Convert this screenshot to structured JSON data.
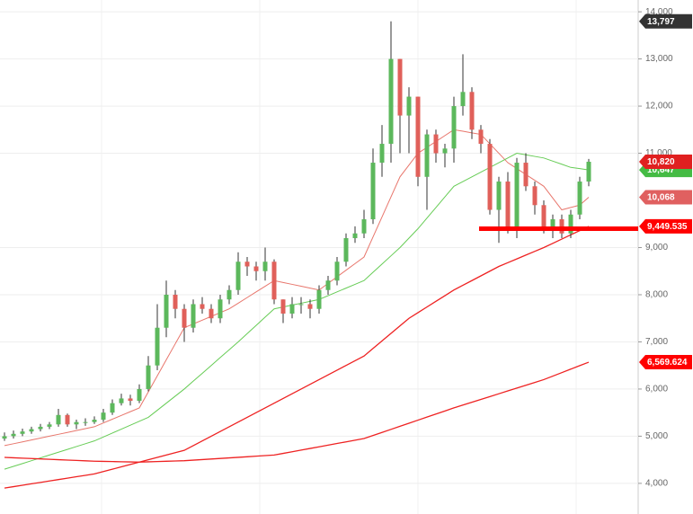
{
  "chart_data": {
    "type": "candlestick",
    "categories": [
      null,
      null,
      null,
      null,
      null,
      null,
      null,
      null,
      null,
      null,
      null,
      null,
      null,
      null,
      null,
      null,
      null,
      null,
      null,
      null,
      null,
      null,
      null,
      null,
      null,
      null,
      null,
      null,
      null,
      null,
      null,
      null,
      null,
      null,
      null,
      null,
      null,
      null,
      null,
      null,
      null,
      null,
      null,
      null,
      null,
      null,
      null,
      null,
      null,
      null,
      null,
      null,
      null,
      null,
      null,
      null,
      null,
      null,
      null,
      null,
      null,
      null,
      null,
      null,
      null,
      null
    ],
    "open": [
      4950,
      5000,
      5050,
      5100,
      5150,
      5200,
      5250,
      5450,
      5250,
      5300,
      5300,
      5350,
      5500,
      5700,
      5800,
      5750,
      6000,
      6500,
      7300,
      8000,
      7700,
      7300,
      7800,
      7700,
      7500,
      7900,
      8100,
      8700,
      8600,
      8500,
      8700,
      7900,
      7600,
      7800,
      7800,
      7700,
      8100,
      8300,
      8700,
      9200,
      9300,
      9600,
      10800,
      11200,
      13000,
      11800,
      12200,
      10500,
      11400,
      11000,
      11100,
      12000,
      12300,
      11500,
      11200,
      9800,
      10400,
      9400,
      10800,
      10300,
      9900,
      9400,
      9600,
      9300,
      9700,
      10400
    ],
    "high": [
      5080,
      5120,
      5160,
      5200,
      5260,
      5300,
      5580,
      5480,
      5350,
      5380,
      5420,
      5580,
      5780,
      5900,
      5880,
      6100,
      6700,
      7800,
      8300,
      8100,
      7800,
      7900,
      7950,
      7800,
      8000,
      8200,
      8900,
      8800,
      8700,
      9000,
      8750,
      7900,
      7950,
      7950,
      7900,
      8200,
      8400,
      8800,
      9300,
      9450,
      9800,
      11100,
      11600,
      13797,
      13000,
      12400,
      12200,
      11500,
      11500,
      11200,
      12200,
      13100,
      12400,
      11600,
      11300,
      10500,
      10600,
      10900,
      11000,
      10400,
      10000,
      9700,
      9700,
      9800,
      10500,
      10880
    ],
    "low": [
      4900,
      4950,
      5000,
      5050,
      5100,
      5150,
      5200,
      5200,
      5150,
      5220,
      5260,
      5300,
      5450,
      5650,
      5650,
      5700,
      5950,
      6400,
      7100,
      7500,
      7000,
      7200,
      7600,
      7400,
      7400,
      7800,
      8000,
      8400,
      8300,
      8300,
      7800,
      7400,
      7500,
      7600,
      7500,
      7600,
      8000,
      8200,
      8600,
      9100,
      9200,
      9500,
      10500,
      10800,
      11000,
      11000,
      10300,
      9800,
      10800,
      10700,
      10800,
      11800,
      11300,
      11000,
      9700,
      9100,
      9300,
      9200,
      10200,
      9700,
      9300,
      9200,
      9200,
      9200,
      9600,
      10300
    ],
    "close": [
      5000,
      5050,
      5100,
      5150,
      5200,
      5250,
      5450,
      5250,
      5300,
      5300,
      5350,
      5500,
      5700,
      5800,
      5750,
      6000,
      6500,
      7300,
      8000,
      7700,
      7300,
      7800,
      7700,
      7500,
      7900,
      8100,
      8700,
      8600,
      8500,
      8700,
      7900,
      7600,
      7800,
      7800,
      7700,
      8100,
      8300,
      8700,
      9200,
      9300,
      9600,
      10800,
      11200,
      13000,
      11800,
      12200,
      10500,
      11400,
      11000,
      11100,
      12000,
      12300,
      11500,
      11200,
      9800,
      10400,
      9400,
      10800,
      10300,
      9900,
      9400,
      9600,
      9300,
      9700,
      10400,
      10820
    ],
    "up_color": "#5cb85c",
    "down_color": "#e0605a",
    "lines": [
      {
        "color": "#e8766c",
        "values": [
          4800,
          4840,
          4880,
          4920,
          4960,
          5000,
          5040,
          5080,
          5120,
          5160,
          5200,
          5280,
          5360,
          5440,
          5520,
          5600,
          5940,
          6280,
          6620,
          6960,
          7300,
          7380,
          7460,
          7540,
          7620,
          7700,
          7820,
          7940,
          8060,
          8180,
          8300,
          8260,
          8220,
          8180,
          8140,
          8100,
          8240,
          8380,
          8520,
          8660,
          8800,
          9225,
          9650,
          10075,
          10500,
          10750,
          11000,
          11125,
          11250,
          11375,
          11500,
          11467,
          11433,
          11400,
          11200,
          11000,
          10800,
          10675,
          10550,
          10425,
          10300,
          10050,
          9800,
          9850,
          9900,
          10068
        ]
      },
      {
        "color": "#66cc55",
        "values": [
          4300,
          4360,
          4420,
          4480,
          4540,
          4600,
          4660,
          4720,
          4780,
          4840,
          4900,
          4983,
          5067,
          5150,
          5233,
          5317,
          5400,
          5550,
          5700,
          5850,
          6000,
          6167,
          6333,
          6500,
          6667,
          6833,
          7000,
          7175,
          7350,
          7525,
          7700,
          7740,
          7780,
          7820,
          7860,
          7900,
          7980,
          8060,
          8140,
          8220,
          8300,
          8475,
          8650,
          8825,
          9000,
          9200,
          9400,
          9625,
          9850,
          10075,
          10300,
          10400,
          10500,
          10600,
          10700,
          10800,
          10900,
          11000,
          10967,
          10933,
          10900,
          10833,
          10767,
          10700,
          10674,
          10647
        ]
      },
      {
        "color": "#ee2222",
        "values": [
          3900,
          3930,
          3960,
          3990,
          4020,
          4050,
          4080,
          4110,
          4140,
          4170,
          4200,
          4250,
          4300,
          4350,
          4400,
          4450,
          4500,
          4550,
          4600,
          4650,
          4700,
          4800,
          4900,
          5000,
          5100,
          5200,
          5300,
          5400,
          5500,
          5600,
          5700,
          5800,
          5900,
          6000,
          6100,
          6200,
          6300,
          6400,
          6500,
          6600,
          6700,
          6860,
          7020,
          7180,
          7340,
          7500,
          7620,
          7740,
          7860,
          7980,
          8100,
          8200,
          8300,
          8400,
          8500,
          8600,
          8680,
          8760,
          8840,
          8920,
          9000,
          9090,
          9180,
          9270,
          9360,
          9449
        ]
      },
      {
        "color": "#ee2222",
        "values": [
          4550,
          4542,
          4534,
          4526,
          4518,
          4510,
          4502,
          4494,
          4486,
          4478,
          4470,
          4466,
          4462,
          4458,
          4454,
          4450,
          4456,
          4462,
          4468,
          4474,
          4480,
          4492,
          4504,
          4516,
          4528,
          4540,
          4552,
          4564,
          4576,
          4588,
          4600,
          4635,
          4670,
          4705,
          4740,
          4775,
          4810,
          4845,
          4880,
          4915,
          4950,
          5015,
          5080,
          5145,
          5210,
          5275,
          5340,
          5405,
          5470,
          5535,
          5600,
          5660,
          5720,
          5780,
          5840,
          5900,
          5960,
          6020,
          6080,
          6140,
          6200,
          6274,
          6348,
          6422,
          6496,
          6569
        ]
      }
    ],
    "hline": {
      "value": 9400,
      "color": "#ff0000"
    },
    "ylim": [
      3350,
      14250
    ],
    "yticks": [
      {
        "value": 4000,
        "label": "4,000"
      },
      {
        "value": 5000,
        "label": "5,000"
      },
      {
        "value": 6000,
        "label": "6,000"
      },
      {
        "value": 7000,
        "label": "7,000"
      },
      {
        "value": 8000,
        "label": "8,000"
      },
      {
        "value": 9000,
        "label": "9,000"
      },
      {
        "value": 11000,
        "label": "11,000"
      },
      {
        "value": 12000,
        "label": "12,000"
      },
      {
        "value": 13000,
        "label": "13,000"
      },
      {
        "value": 14000,
        "label": "14,000"
      }
    ],
    "grid": true,
    "price_tags": [
      {
        "value": 13797,
        "label": "13,797",
        "color": "#333333"
      },
      {
        "value": 10647,
        "label": "10,647",
        "color": "#44bb44"
      },
      {
        "value": 10820,
        "label": "10,820",
        "color": "#e02020"
      },
      {
        "value": 10068,
        "label": "10,068",
        "color": "#e06060"
      },
      {
        "value": 9449.535,
        "label": "9,449.535",
        "color": "#ff0000"
      },
      {
        "value": 6569.624,
        "label": "6,569.624",
        "color": "#ff0000"
      }
    ]
  }
}
